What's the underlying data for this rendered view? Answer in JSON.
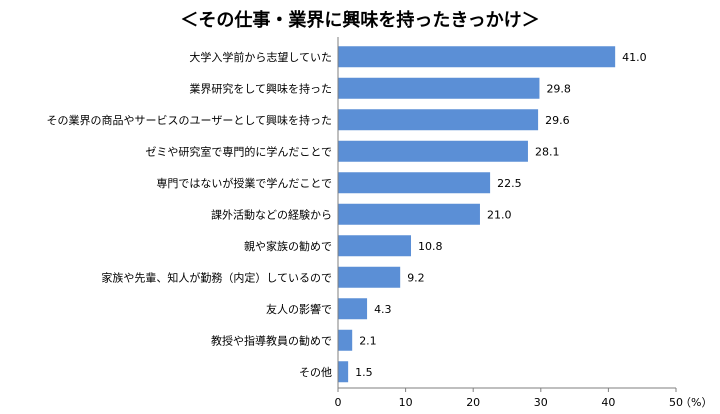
{
  "chart_data": {
    "type": "bar",
    "orientation": "horizontal",
    "title": "＜その仕事・業界に興味を持ったきっかけ＞",
    "categories": [
      "大学入学前から志望していた",
      "業界研究をして興味を持った",
      "その業界の商品やサービスのユーザーとして興味を持った",
      "ゼミや研究室で専門的に学んだことで",
      "専門ではないが授業で学んだことで",
      "課外活動などの経験から",
      "親や家族の勧めで",
      "家族や先輩、知人が勤務（内定）しているので",
      "友人の影響で",
      "教授や指導教員の勧めで",
      "その他"
    ],
    "values": [
      41.0,
      29.8,
      29.6,
      28.1,
      22.5,
      21.0,
      10.8,
      9.2,
      4.3,
      2.1,
      1.5
    ],
    "value_labels": [
      "41.0",
      "29.8",
      "29.6",
      "28.1",
      "22.5",
      "21.0",
      "10.8",
      "9.2",
      "4.3",
      "2.1",
      "1.5"
    ],
    "xlim": [
      0,
      50
    ],
    "x_ticks": [
      "0",
      "10",
      "20",
      "30",
      "40",
      "50"
    ],
    "unit_label": "（%）",
    "grid": false,
    "bar_color": "#5b8fd6"
  }
}
